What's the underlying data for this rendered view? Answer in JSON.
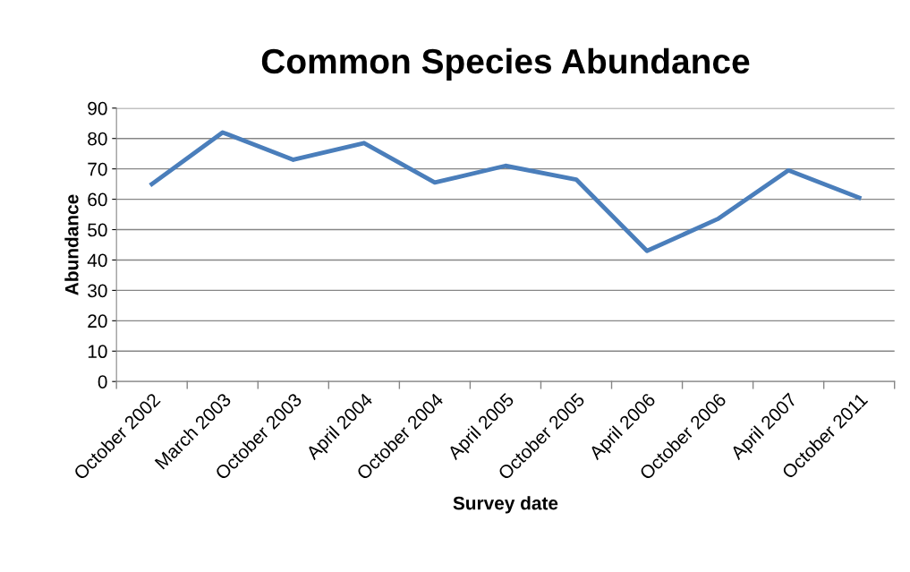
{
  "chart_data": {
    "type": "line",
    "title": "Common Species Abundance",
    "xlabel": "Survey date",
    "ylabel": "Abundance",
    "categories": [
      "October 2002",
      "March 2003",
      "October 2003",
      "April 2004",
      "October 2004",
      "April 2005",
      "October 2005",
      "April 2006",
      "October 2006",
      "April 2007",
      "October 2011"
    ],
    "series": [
      {
        "color": "#4a7ebb",
        "values": [
          65,
          82,
          73,
          78.5,
          65.5,
          71,
          66.5,
          43,
          53.5,
          69.5,
          60.5
        ]
      }
    ],
    "ylim": [
      0,
      90
    ],
    "yticks": [
      0,
      10,
      20,
      30,
      40,
      50,
      60,
      70,
      80,
      90
    ],
    "grid": "y",
    "legend": false,
    "marker": "none",
    "line_style": "solid"
  }
}
